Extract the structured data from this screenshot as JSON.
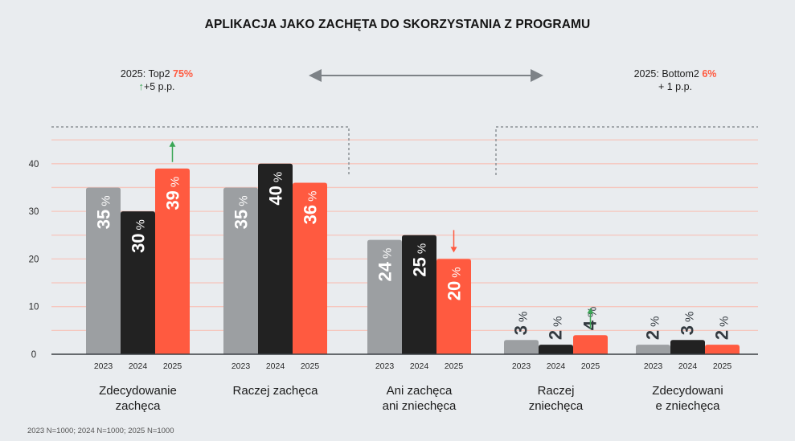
{
  "chart_data": {
    "type": "bar",
    "title": "APLIKACJA JAKO ZACHĘTA DO SKORZYSTANIA Z PROGRAMU",
    "xlabel": "",
    "ylabel": "",
    "ylim": [
      0,
      45
    ],
    "yticks": [
      0,
      10,
      20,
      30,
      40
    ],
    "grid": true,
    "categories": [
      "Zdecydowanie zachęca",
      "Raczej zachęca",
      "Ani zachęca ani zniechęca",
      "Raczej zniechęca",
      "Zdecydowanie zniechęca"
    ],
    "category_labels": [
      [
        "Zdecydowanie",
        "zachęca"
      ],
      [
        "Raczej zachęca"
      ],
      [
        "Ani zachęca",
        "ani zniechęca"
      ],
      [
        "Raczej",
        "zniechęca"
      ],
      [
        "Zdecydowani",
        "e zniechęca"
      ]
    ],
    "series": [
      {
        "name": "2023",
        "color": "#9c9fa2",
        "values": [
          35,
          35,
          24,
          3,
          2
        ]
      },
      {
        "name": "2024",
        "color": "#222222",
        "values": [
          30,
          40,
          25,
          2,
          3
        ]
      },
      {
        "name": "2025",
        "color": "#ff5a40",
        "values": [
          39,
          36,
          20,
          4,
          2
        ]
      }
    ],
    "data_label_suffix": "%",
    "change_arrows": [
      {
        "category": 0,
        "series": "2025",
        "direction": "up",
        "color": "#3aa655"
      },
      {
        "category": 2,
        "series": "2025",
        "direction": "down",
        "color": "#ff5a40"
      },
      {
        "category": 3,
        "series": "2025",
        "direction": "up",
        "color": "#3aa655"
      }
    ],
    "annotations": {
      "top2": {
        "prefix": "2025: Top2 ",
        "value": "75%",
        "change": "+5 p.p.",
        "change_direction": "up"
      },
      "bottom2": {
        "prefix": "2025: Bottom2 ",
        "value": "6%",
        "change": "+ 1 p.p."
      }
    }
  },
  "footnote": "2023 N=1000; 2024 N=1000; 2025 N=1000",
  "colors": {
    "grid": "#f6c6bd",
    "axis": "#3a3f44",
    "bracket": "#8c9196",
    "arrow_gray": "#7d8287",
    "up": "#3aa655",
    "accent": "#ff5a40"
  }
}
